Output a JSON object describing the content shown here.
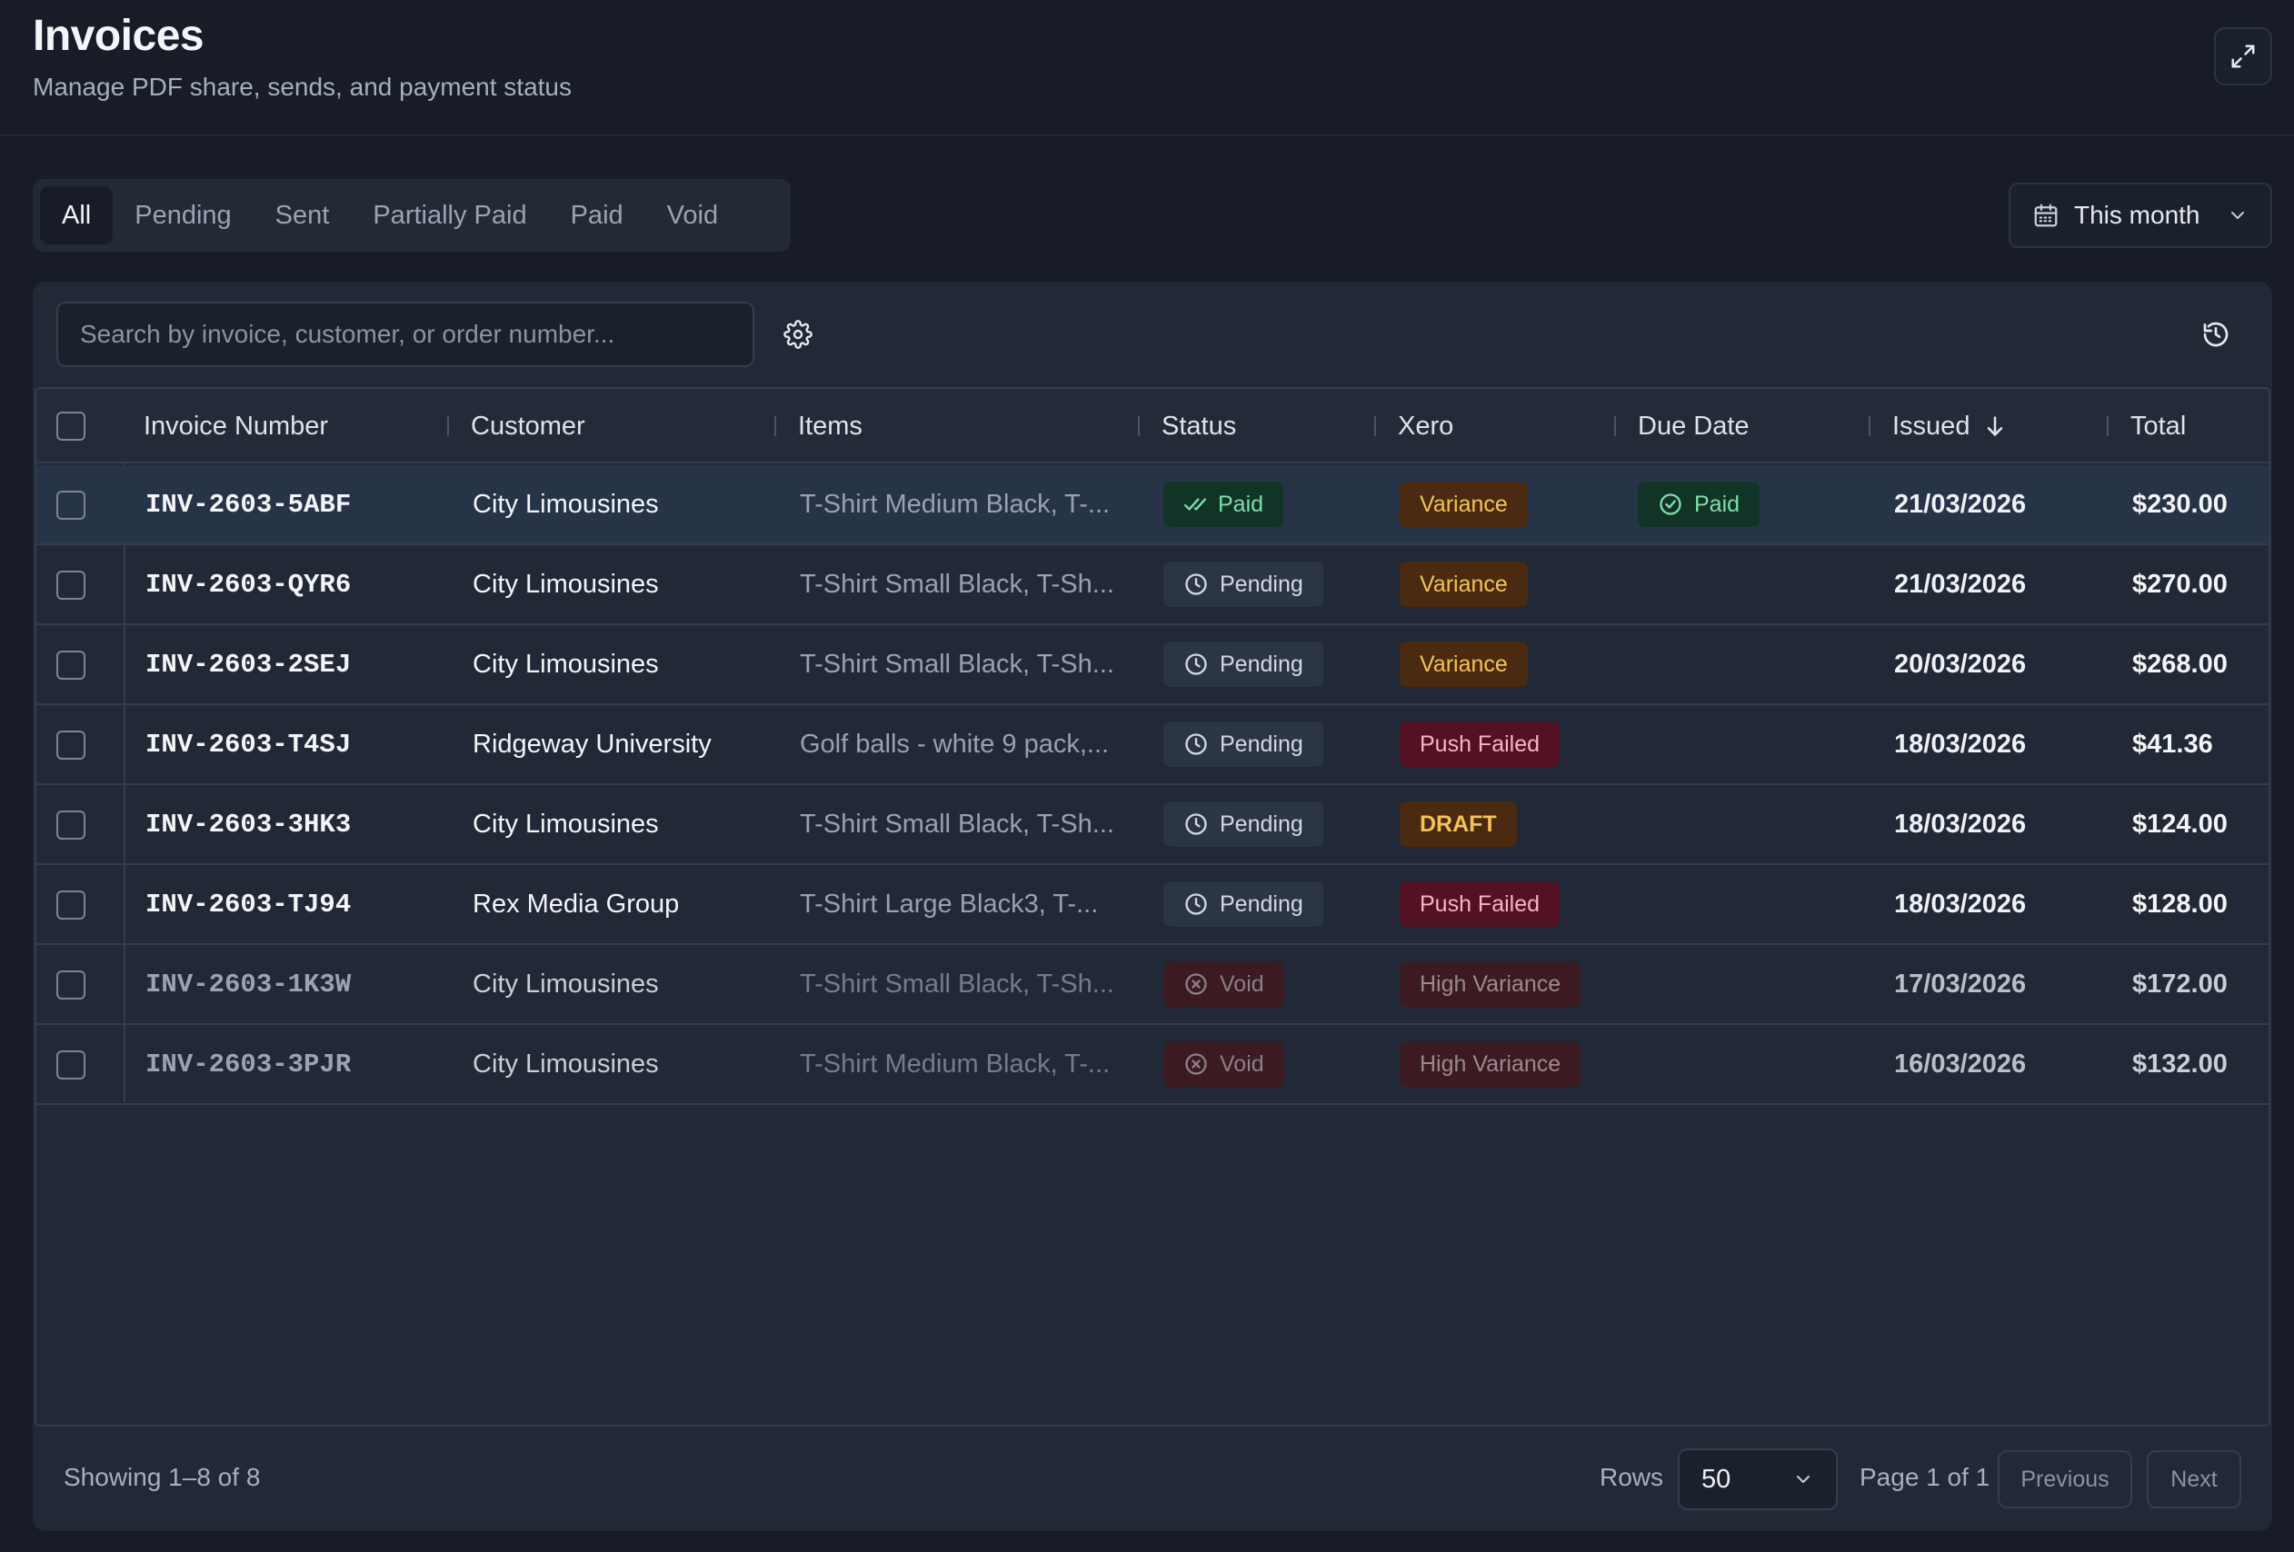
{
  "header": {
    "title": "Invoices",
    "subtitle": "Manage PDF share, sends, and payment status"
  },
  "tabs": [
    {
      "label": "All",
      "active": true
    },
    {
      "label": "Pending",
      "active": false
    },
    {
      "label": "Sent",
      "active": false
    },
    {
      "label": "Partially Paid",
      "active": false
    },
    {
      "label": "Paid",
      "active": false
    },
    {
      "label": "Void",
      "active": false
    }
  ],
  "date_filter": {
    "label": "This month"
  },
  "search": {
    "placeholder": "Search by invoice, customer, or order number...",
    "value": ""
  },
  "table": {
    "columns": {
      "invoice": "Invoice Number",
      "customer": "Customer",
      "items": "Items",
      "status": "Status",
      "xero": "Xero",
      "due": "Due Date",
      "issued": "Issued",
      "total": "Total"
    },
    "rows": [
      {
        "invoice": "INV-2603-5ABF",
        "customer": "City Limousines",
        "items": "T-Shirt Medium Black, T-...",
        "status": "Paid",
        "xero": "Variance",
        "due": "Paid",
        "issued": "21/03/2026",
        "total": "$230.00"
      },
      {
        "invoice": "INV-2603-QYR6",
        "customer": "City Limousines",
        "items": "T-Shirt Small Black, T-Sh...",
        "status": "Pending",
        "xero": "Variance",
        "due": "",
        "issued": "21/03/2026",
        "total": "$270.00"
      },
      {
        "invoice": "INV-2603-2SEJ",
        "customer": "City Limousines",
        "items": "T-Shirt Small Black, T-Sh...",
        "status": "Pending",
        "xero": "Variance",
        "due": "",
        "issued": "20/03/2026",
        "total": "$268.00"
      },
      {
        "invoice": "INV-2603-T4SJ",
        "customer": "Ridgeway University",
        "items": "Golf balls - white 9 pack,...",
        "status": "Pending",
        "xero": "Push Failed",
        "due": "",
        "issued": "18/03/2026",
        "total": "$41.36"
      },
      {
        "invoice": "INV-2603-3HK3",
        "customer": "City Limousines",
        "items": "T-Shirt Small Black, T-Sh...",
        "status": "Pending",
        "xero": "DRAFT",
        "due": "",
        "issued": "18/03/2026",
        "total": "$124.00"
      },
      {
        "invoice": "INV-2603-TJ94",
        "customer": "Rex Media Group",
        "items": "T-Shirt Large Black3, T-...",
        "status": "Pending",
        "xero": "Push Failed",
        "due": "",
        "issued": "18/03/2026",
        "total": "$128.00"
      },
      {
        "invoice": "INV-2603-1K3W",
        "customer": "City Limousines",
        "items": "T-Shirt Small Black, T-Sh...",
        "status": "Void",
        "xero": "High Variance",
        "due": "",
        "issued": "17/03/2026",
        "total": "$172.00"
      },
      {
        "invoice": "INV-2603-3PJR",
        "customer": "City Limousines",
        "items": "T-Shirt Medium Black, T-...",
        "status": "Void",
        "xero": "High Variance",
        "due": "",
        "issued": "16/03/2026",
        "total": "$132.00"
      }
    ]
  },
  "footer": {
    "showing": "Showing 1–8 of 8",
    "rows_label": "Rows",
    "rows_value": "50",
    "page_label": "Page 1 of 1",
    "previous": "Previous",
    "next": "Next"
  },
  "icons": {
    "expand": "expand-icon",
    "calendar": "calendar-icon",
    "chevron": "chevron-down-icon",
    "gear": "gear-icon",
    "history": "history-icon",
    "sort": "arrow-down-icon",
    "paid": "double-check-icon",
    "due_paid": "check-circle-icon",
    "pending": "clock-icon",
    "void": "x-circle-icon"
  }
}
